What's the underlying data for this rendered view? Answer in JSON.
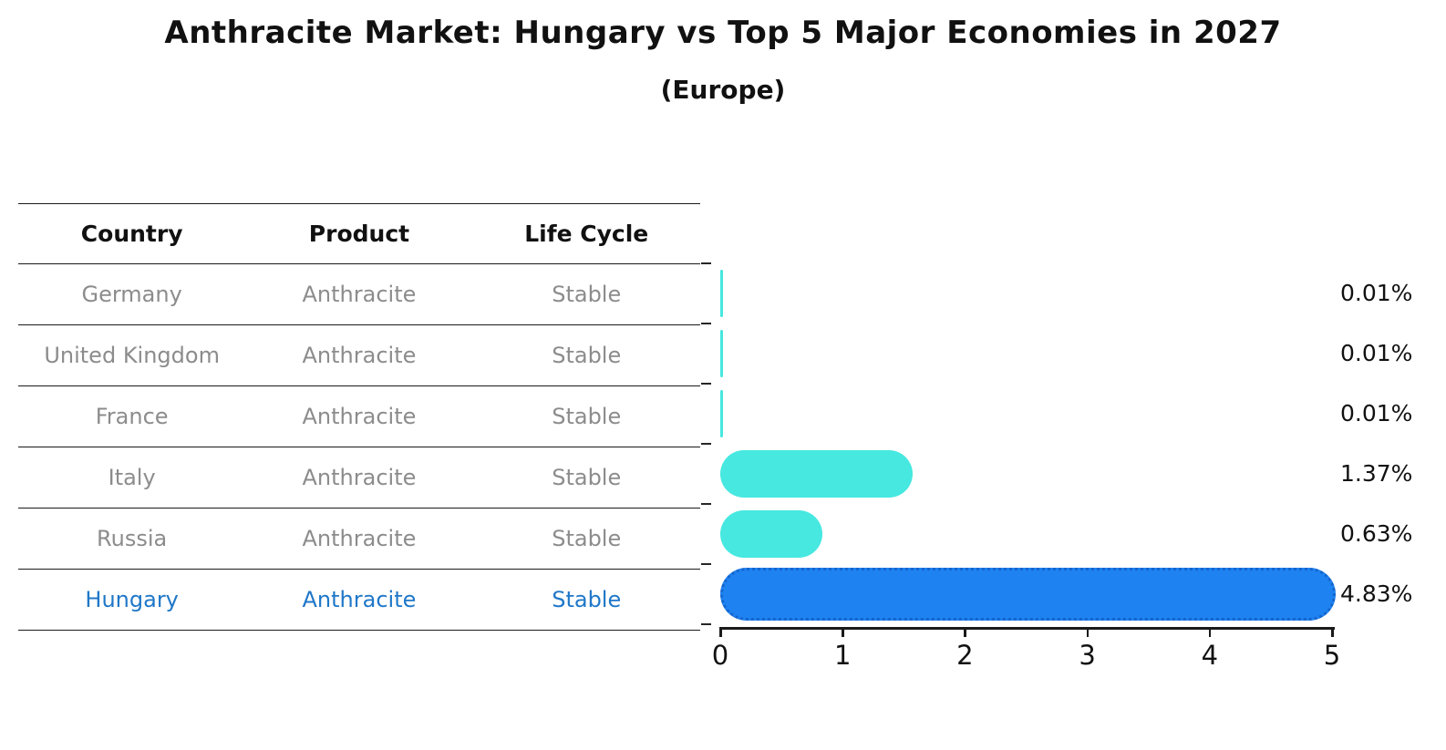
{
  "title": "Anthracite Market: Hungary vs Top 5 Major Economies in 2027",
  "subtitle": "(Europe)",
  "table": {
    "columns": [
      "Country",
      "Product",
      "Life Cycle"
    ],
    "rows": [
      {
        "country": "Germany",
        "product": "Anthracite",
        "life_cycle": "Stable",
        "highlight": false
      },
      {
        "country": "United Kingdom",
        "product": "Anthracite",
        "life_cycle": "Stable",
        "highlight": false
      },
      {
        "country": "France",
        "product": "Anthracite",
        "life_cycle": "Stable",
        "highlight": false
      },
      {
        "country": "Italy",
        "product": "Anthracite",
        "life_cycle": "Stable",
        "highlight": false
      },
      {
        "country": "Russia",
        "product": "Anthracite",
        "life_cycle": "Stable",
        "highlight": false
      },
      {
        "country": "Hungary",
        "product": "Anthracite",
        "life_cycle": "Stable",
        "highlight": true
      }
    ]
  },
  "chart_data": {
    "type": "bar",
    "orientation": "horizontal",
    "title": "Anthracite Market: Hungary vs Top 5 Major Economies in 2027",
    "subtitle": "(Europe)",
    "categories": [
      "Germany",
      "United Kingdom",
      "France",
      "Italy",
      "Russia",
      "Hungary"
    ],
    "values": [
      0.01,
      0.01,
      0.01,
      1.37,
      0.63,
      4.83
    ],
    "value_labels": [
      "0.01%",
      "0.01%",
      "0.01%",
      "1.37%",
      "0.63%",
      "4.83%"
    ],
    "xlim": [
      0,
      5
    ],
    "x_ticks": [
      "0",
      "1",
      "2",
      "3",
      "4",
      "5"
    ],
    "grid": false,
    "legend": false,
    "highlight_category": "Hungary",
    "bar_colors": [
      "#46E8E0",
      "#46E8E0",
      "#46E8E0",
      "#46E8E0",
      "#46E8E0",
      "#1E82F0"
    ]
  },
  "colors": {
    "bar_cyan": "#46E8E0",
    "bar_blue": "#1E82F0",
    "highlight_border": "#1565CE",
    "highlight_text": "#1F77C8",
    "muted_text": "#8C8C8C",
    "text": "#111111"
  }
}
